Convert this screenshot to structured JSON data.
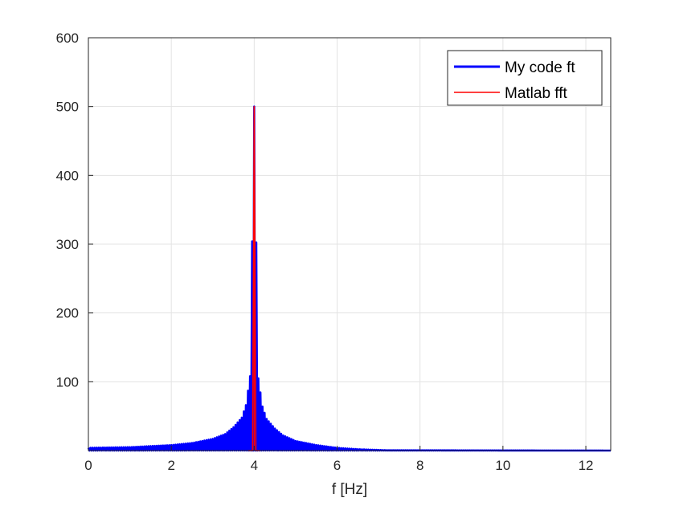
{
  "chart_data": {
    "type": "line",
    "title": "",
    "xlabel": "f [Hz]",
    "ylabel": "",
    "xlim": [
      0,
      12.6
    ],
    "ylim": [
      0,
      600
    ],
    "xticks": [
      0,
      2,
      4,
      6,
      8,
      10,
      12
    ],
    "yticks": [
      100,
      200,
      300,
      400,
      500,
      600
    ],
    "xtick_labels": [
      "0",
      "2",
      "4",
      "6",
      "8",
      "10",
      "12"
    ],
    "ytick_labels": [
      "100",
      "200",
      "300",
      "400",
      "500",
      "600"
    ],
    "grid": true,
    "legend_position": "top-right",
    "peak_frequency": 4,
    "peak_value": 500,
    "series": [
      {
        "name": "My code ft",
        "color": "#0000ff",
        "style": "oscillating spectrum envelope",
        "envelope": [
          {
            "x": 0.0,
            "y": 4
          },
          {
            "x": 1.0,
            "y": 5
          },
          {
            "x": 2.0,
            "y": 8
          },
          {
            "x": 2.5,
            "y": 11
          },
          {
            "x": 3.0,
            "y": 17
          },
          {
            "x": 3.3,
            "y": 24
          },
          {
            "x": 3.5,
            "y": 34
          },
          {
            "x": 3.7,
            "y": 48
          },
          {
            "x": 3.8,
            "y": 66
          },
          {
            "x": 3.9,
            "y": 108
          },
          {
            "x": 4.0,
            "y": 500
          },
          {
            "x": 4.1,
            "y": 105
          },
          {
            "x": 4.2,
            "y": 64
          },
          {
            "x": 4.3,
            "y": 46
          },
          {
            "x": 4.5,
            "y": 32
          },
          {
            "x": 4.7,
            "y": 22
          },
          {
            "x": 5.0,
            "y": 14
          },
          {
            "x": 5.5,
            "y": 8
          },
          {
            "x": 6.0,
            "y": 4
          },
          {
            "x": 6.5,
            "y": 2
          },
          {
            "x": 7.2,
            "y": 0.5
          },
          {
            "x": 12.6,
            "y": 0
          }
        ]
      },
      {
        "name": "Matlab fft",
        "color": "#ff0000",
        "points": [
          {
            "x": 3.86,
            "y": 0
          },
          {
            "x": 3.92,
            "y": 0
          },
          {
            "x": 3.96,
            "y": 0
          },
          {
            "x": 4.0,
            "y": 500
          },
          {
            "x": 4.04,
            "y": 0
          },
          {
            "x": 4.08,
            "y": 0
          },
          {
            "x": 4.14,
            "y": 0
          }
        ]
      }
    ]
  }
}
